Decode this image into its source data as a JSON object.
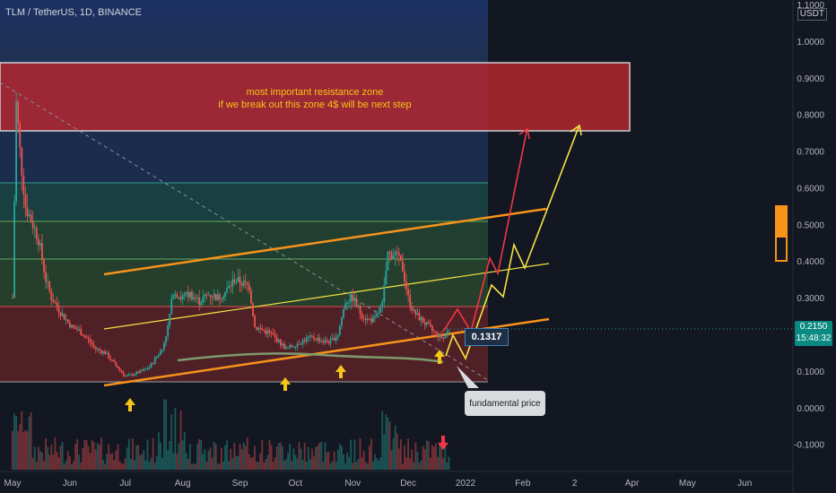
{
  "header": {
    "ticker": "TLM / TetherUS, 1D, BINANCE",
    "currency": "USDT"
  },
  "annotations": {
    "zone_line1": "most important resistance zone",
    "zone_line2": "if we break out this zone 4$ will be next step",
    "fundamental": "fundamental price",
    "price_label": "0.1317"
  },
  "last_price": {
    "price": "0.2150",
    "countdown": "15:48:32"
  },
  "colors": {
    "background": "#131722",
    "candle_up": "#26a69a",
    "candle_down": "#ef5350",
    "orange_line": "#f7931a",
    "yellow_line": "#f5e342",
    "red_projection": "#f23645",
    "resistance_zone": "#c0282e",
    "arrow_up": "#f5c518",
    "arrow_down": "#f23645"
  },
  "chart_data": {
    "type": "candlestick",
    "title": "TLM / TetherUS, 1D, BINANCE",
    "ylim": [
      -0.14,
      1.1
    ],
    "y_ticks": [
      "1.1000",
      "1.0000",
      "0.9000",
      "0.8000",
      "0.7000",
      "0.6000",
      "0.5000",
      "0.4000",
      "0.3000",
      "0.2000",
      "0.1000",
      "0.0000",
      "-0.1000"
    ],
    "x_ticks": [
      "May",
      "Jun",
      "Jul",
      "Aug",
      "Sep",
      "Oct",
      "Nov",
      "Dec",
      "2022",
      "Feb",
      "2",
      "Apr",
      "May",
      "Jun"
    ],
    "resistance_zone": [
      0.755,
      0.94
    ],
    "fib_levels": [
      0.615,
      0.512,
      0.41,
      0.28,
      0.073
    ],
    "price_path": [
      [
        "2021-05-01",
        0.3
      ],
      [
        "2021-05-03",
        0.83
      ],
      [
        "2021-05-05",
        0.7
      ],
      [
        "2021-05-08",
        0.55
      ],
      [
        "2021-05-12",
        0.5
      ],
      [
        "2021-05-15",
        0.46
      ],
      [
        "2021-05-19",
        0.35
      ],
      [
        "2021-05-22",
        0.3
      ],
      [
        "2021-05-27",
        0.26
      ],
      [
        "2021-06-02",
        0.22
      ],
      [
        "2021-06-06",
        0.21
      ],
      [
        "2021-06-10",
        0.19
      ],
      [
        "2021-06-15",
        0.16
      ],
      [
        "2021-06-20",
        0.15
      ],
      [
        "2021-06-25",
        0.12
      ],
      [
        "2021-07-01",
        0.085
      ],
      [
        "2021-07-05",
        0.09
      ],
      [
        "2021-07-10",
        0.1
      ],
      [
        "2021-07-14",
        0.11
      ],
      [
        "2021-07-18",
        0.14
      ],
      [
        "2021-07-21",
        0.16
      ],
      [
        "2021-07-24",
        0.22
      ],
      [
        "2021-07-27",
        0.32
      ],
      [
        "2021-07-31",
        0.3
      ],
      [
        "2021-08-05",
        0.31
      ],
      [
        "2021-08-10",
        0.29
      ],
      [
        "2021-08-15",
        0.31
      ],
      [
        "2021-08-20",
        0.3
      ],
      [
        "2021-08-25",
        0.32
      ],
      [
        "2021-08-29",
        0.35
      ],
      [
        "2021-09-02",
        0.34
      ],
      [
        "2021-09-06",
        0.33
      ],
      [
        "2021-09-09",
        0.22
      ],
      [
        "2021-09-14",
        0.21
      ],
      [
        "2021-09-18",
        0.2
      ],
      [
        "2021-09-22",
        0.18
      ],
      [
        "2021-09-26",
        0.16
      ],
      [
        "2021-09-30",
        0.17
      ],
      [
        "2021-10-04",
        0.18
      ],
      [
        "2021-10-08",
        0.19
      ],
      [
        "2021-10-12",
        0.19
      ],
      [
        "2021-10-16",
        0.18
      ],
      [
        "2021-10-20",
        0.18
      ],
      [
        "2021-10-24",
        0.2
      ],
      [
        "2021-10-28",
        0.29
      ],
      [
        "2021-11-01",
        0.3
      ],
      [
        "2021-11-05",
        0.26
      ],
      [
        "2021-11-09",
        0.24
      ],
      [
        "2021-11-13",
        0.24
      ],
      [
        "2021-11-17",
        0.28
      ],
      [
        "2021-11-20",
        0.42
      ],
      [
        "2021-11-24",
        0.42
      ],
      [
        "2021-11-28",
        0.38
      ],
      [
        "2021-12-01",
        0.3
      ],
      [
        "2021-12-04",
        0.26
      ],
      [
        "2021-12-08",
        0.24
      ],
      [
        "2021-12-12",
        0.22
      ],
      [
        "2021-12-16",
        0.2
      ],
      [
        "2021-12-20",
        0.19
      ],
      [
        "2021-12-23",
        0.215
      ]
    ]
  }
}
